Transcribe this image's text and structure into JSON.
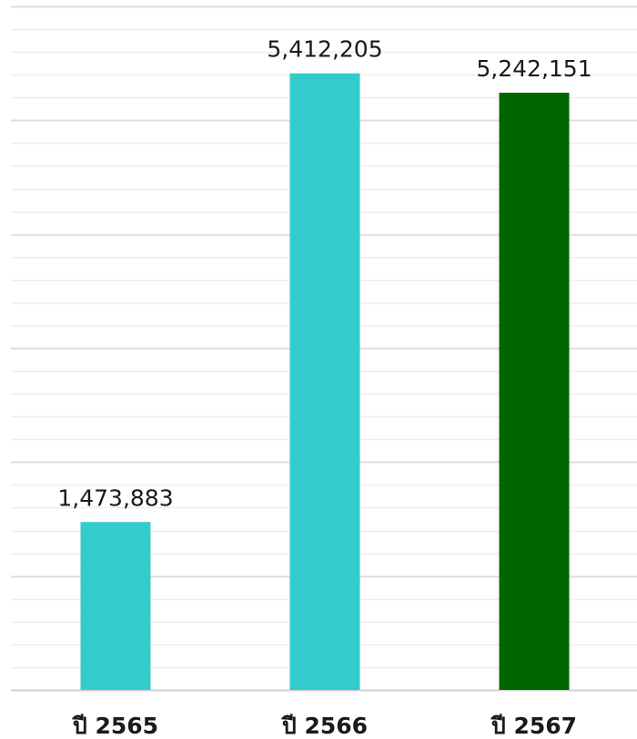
{
  "chart_data": {
    "type": "bar",
    "title": "",
    "xlabel": "",
    "ylabel": "",
    "categories": [
      "ปี 2565",
      "ปี 2566",
      "ปี 2567"
    ],
    "values": [
      1473883,
      5412205,
      5242151
    ],
    "value_labels": [
      "1,473,883",
      "5,412,205",
      "5,242,151"
    ],
    "bar_colors": [
      "#33cccc",
      "#33cccc",
      "#006600"
    ],
    "ylim": [
      0,
      6000000
    ],
    "grid": true,
    "legend": "none",
    "major_gridline_color": "#dddddd",
    "minor_gridline_color": "#eeeeee",
    "axis_color": "#d0d0d0"
  }
}
